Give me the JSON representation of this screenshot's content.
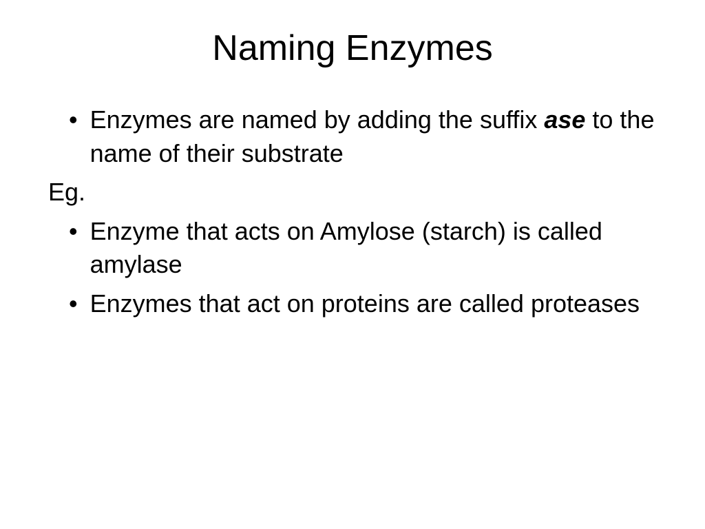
{
  "slide": {
    "title": "Naming Enzymes",
    "title_fontsize": 52,
    "body_fontsize": 36,
    "background_color": "#ffffff",
    "text_color": "#000000",
    "bullets": [
      {
        "type": "bullet",
        "segments": [
          {
            "text": "Enzymes are named by adding the suffix ",
            "style": "normal"
          },
          {
            "text": "ase",
            "style": "bold-italic"
          },
          {
            "text": " to the name of their substrate",
            "style": "normal"
          }
        ]
      },
      {
        "type": "plain",
        "text": "Eg."
      },
      {
        "type": "bullet",
        "text": "Enzyme that acts on Amylose (starch) is called amylase"
      },
      {
        "type": "bullet",
        "text": "Enzymes that act on proteins are called proteases"
      }
    ]
  }
}
